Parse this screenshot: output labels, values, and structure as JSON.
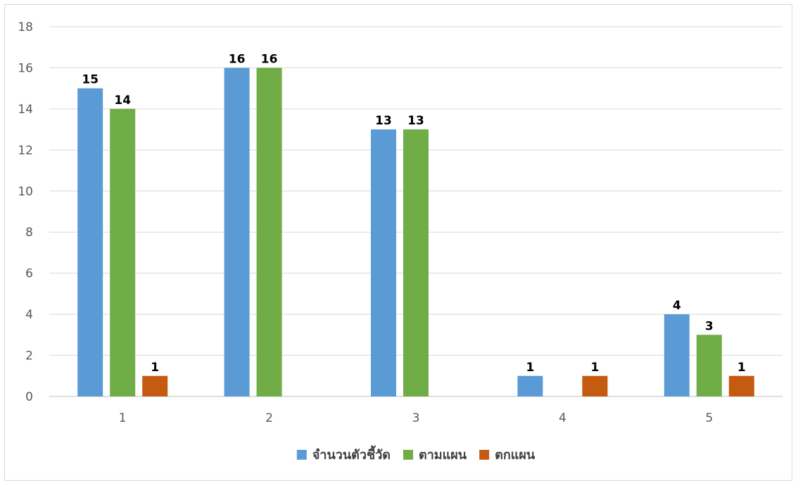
{
  "chart_data": {
    "type": "bar",
    "categories": [
      "1",
      "2",
      "3",
      "4",
      "5"
    ],
    "series": [
      {
        "name": "จำนวนตัวชี้วัด",
        "values": [
          15,
          16,
          13,
          1,
          4
        ],
        "color": "#5b9bd5"
      },
      {
        "name": "ตามแผน",
        "values": [
          14,
          16,
          13,
          null,
          3
        ],
        "color": "#70ad47"
      },
      {
        "name": "ตกแผน",
        "values": [
          1,
          null,
          null,
          1,
          1
        ],
        "color": "#c55a11"
      }
    ],
    "ylim": [
      0,
      18
    ],
    "yticks": [
      "0",
      "2",
      "4",
      "6",
      "8",
      "10",
      "12",
      "14",
      "16",
      "18"
    ],
    "grid": true,
    "legend_position": "bottom",
    "data_labels": true
  }
}
